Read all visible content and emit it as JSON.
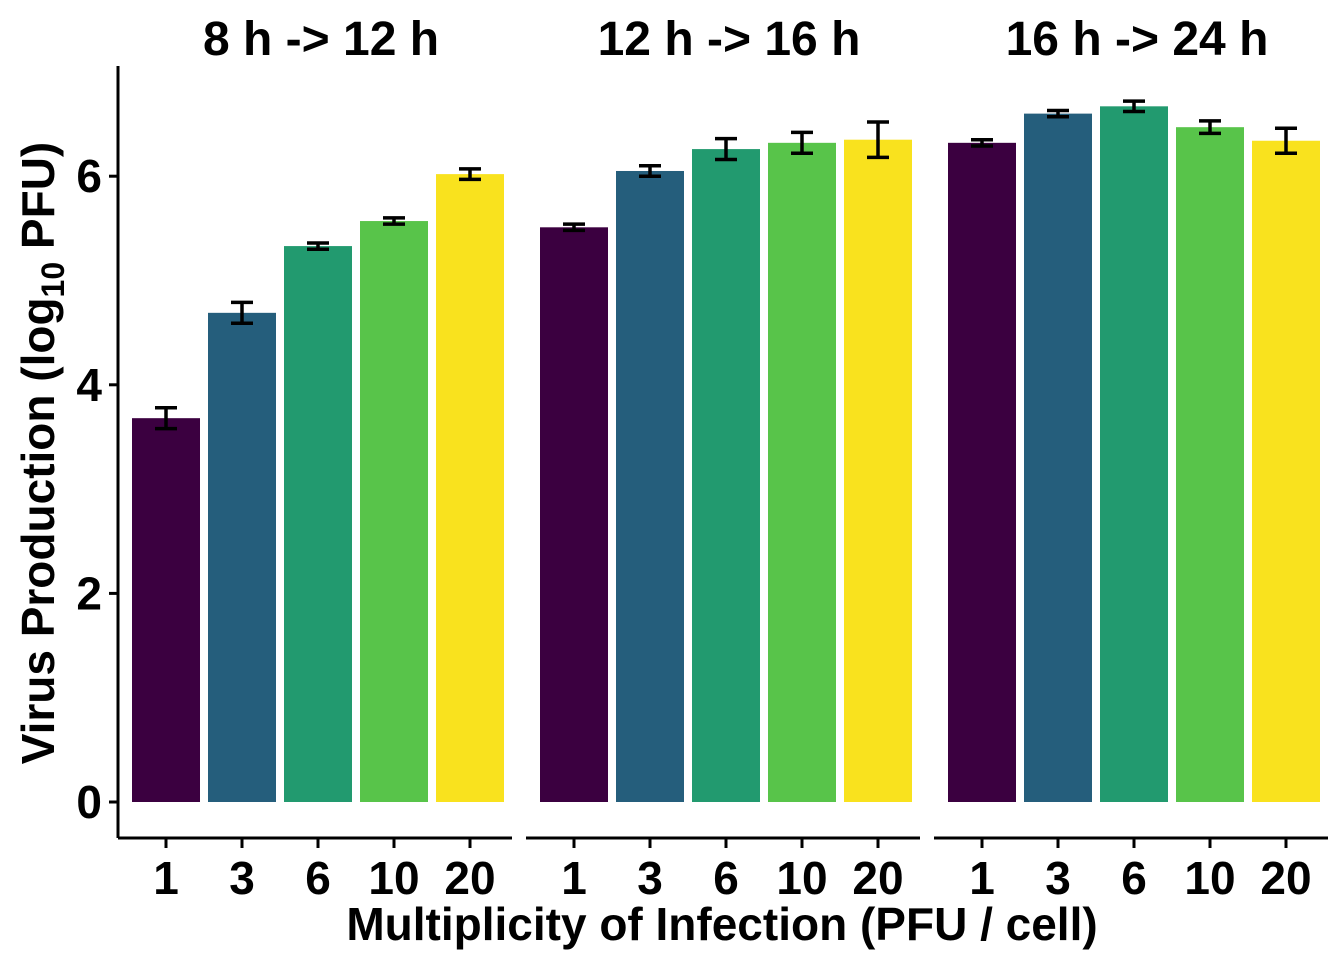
{
  "chart_data": {
    "type": "bar",
    "xlabel": "Multiplicity of Infection (PFU / cell)",
    "ylabel": {
      "prefix": "Virus Production (log",
      "subscript": "10",
      "suffix": " PFU)"
    },
    "ylim": [
      0,
      7
    ],
    "yticks": [
      0,
      2,
      4,
      6
    ],
    "categories": [
      "1",
      "3",
      "6",
      "10",
      "20"
    ],
    "colors": [
      "#440154",
      "#3b528b",
      "#21908c",
      "#5dc863",
      "#fde725"
    ],
    "colors_rendered": [
      "#3b0040",
      "#255e7c",
      "#229a6f",
      "#58c44a",
      "#f9e21e"
    ],
    "grid": false,
    "legend": "none",
    "panels": [
      {
        "title": "8 h -> 12 h",
        "values": [
          3.68,
          4.69,
          5.33,
          5.57,
          6.02
        ],
        "errors": [
          0.1,
          0.1,
          0.03,
          0.03,
          0.05
        ]
      },
      {
        "title": "12 h -> 16 h",
        "values": [
          5.51,
          6.05,
          6.26,
          6.32,
          6.35
        ],
        "errors": [
          0.03,
          0.05,
          0.1,
          0.1,
          0.17
        ]
      },
      {
        "title": "16 h -> 24 h",
        "values": [
          6.32,
          6.6,
          6.67,
          6.47,
          6.34
        ],
        "errors": [
          0.03,
          0.03,
          0.05,
          0.06,
          0.12
        ]
      }
    ]
  }
}
